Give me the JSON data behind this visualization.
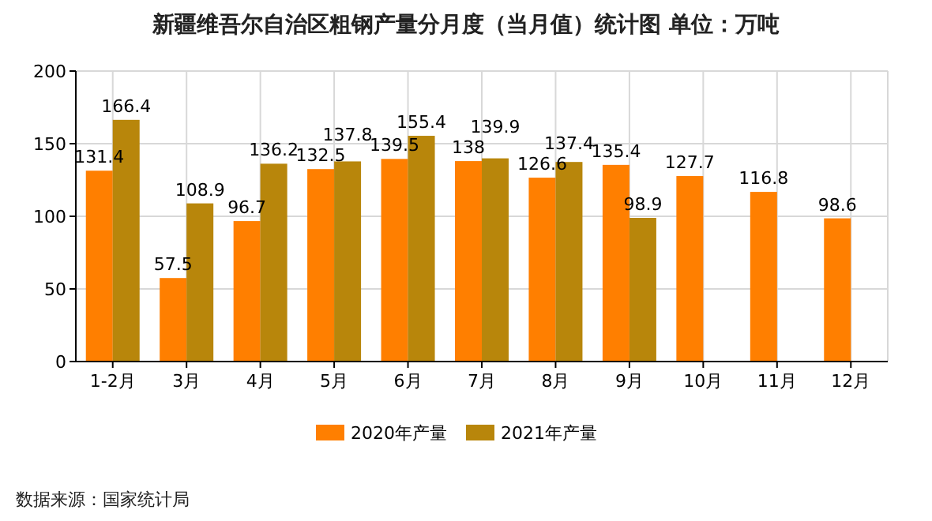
{
  "chart_data": {
    "type": "bar",
    "title": "新疆维吾尔自治区粗钢产量分月度（当月值）统计图  单位：万吨",
    "categories": [
      "1-2月",
      "3月",
      "4月",
      "5月",
      "6月",
      "7月",
      "8月",
      "9月",
      "10月",
      "11月",
      "12月"
    ],
    "series": [
      {
        "name": "2020年产量",
        "color": "#ff7f00",
        "values": [
          131.4,
          57.5,
          96.7,
          132.5,
          139.5,
          138,
          126.6,
          135.4,
          127.7,
          116.8,
          98.6
        ]
      },
      {
        "name": "2021年产量",
        "color": "#b8860b",
        "values": [
          166.4,
          108.9,
          136.2,
          137.8,
          155.4,
          139.9,
          137.4,
          98.9,
          null,
          null,
          null
        ]
      }
    ],
    "ylim": [
      0,
      200
    ],
    "yticks": [
      0,
      50,
      100,
      150,
      200
    ],
    "grid": true,
    "legend": "bottom",
    "data_labels": true,
    "annotations": [
      "数据来源：国家统计局"
    ]
  }
}
